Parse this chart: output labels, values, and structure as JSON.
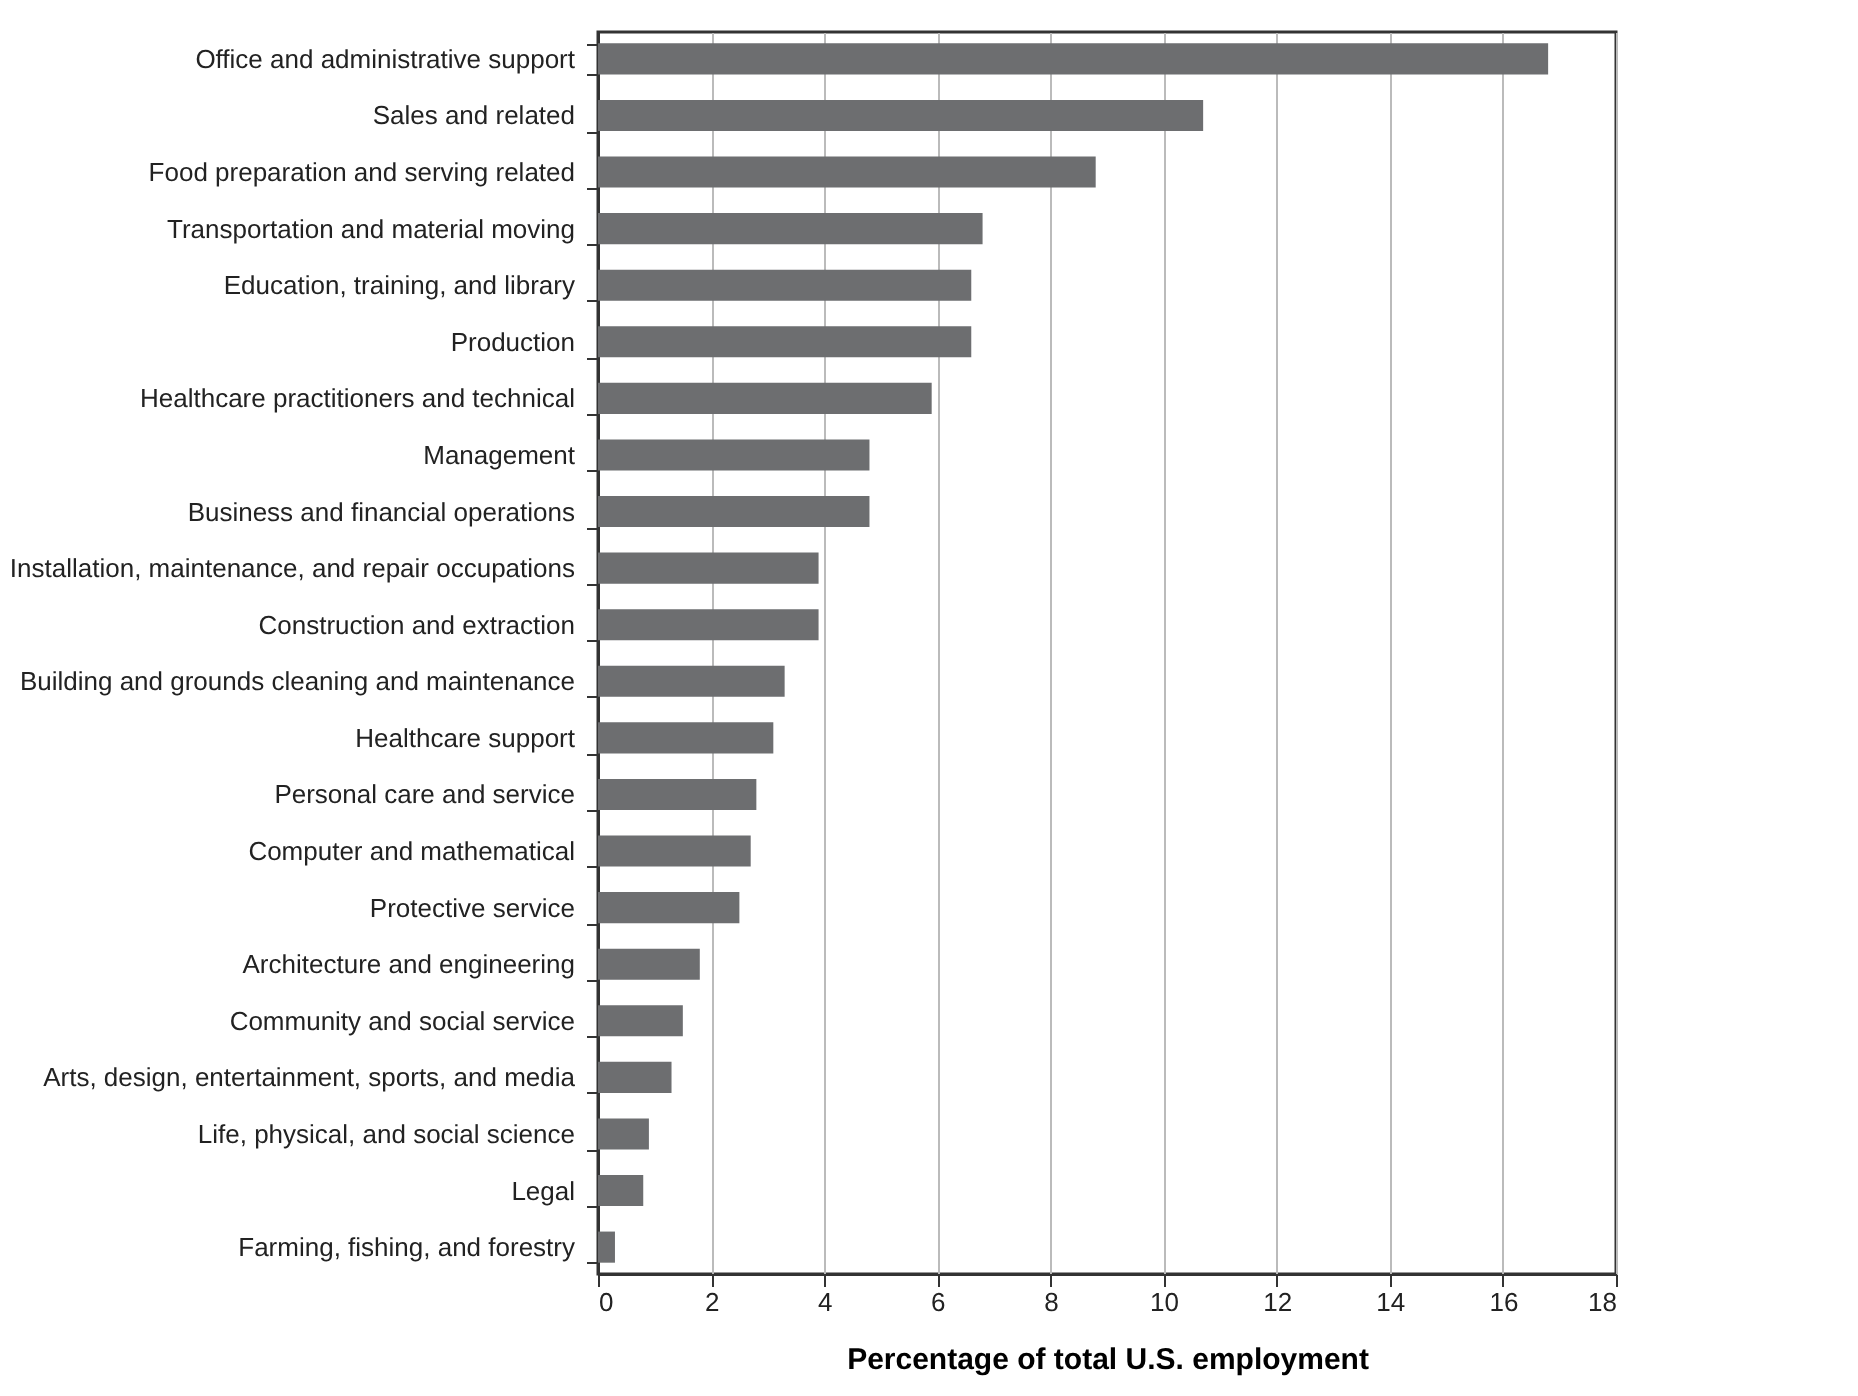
{
  "chart_data": {
    "type": "bar",
    "orientation": "horizontal",
    "xlabel": "Percentage of total U.S. employment",
    "categories": [
      "Office and administrative support",
      "Sales and related",
      "Food preparation and serving related",
      "Transportation and material moving",
      "Education, training, and library",
      "Production",
      "Healthcare practitioners and technical",
      "Management",
      "Business and financial operations",
      "Installation, maintenance, and repair occupations",
      "Construction and extraction",
      "Building and grounds cleaning and maintenance",
      "Healthcare support",
      "Personal care and service",
      "Computer and mathematical",
      "Protective service",
      "Architecture and engineering",
      "Community and social service",
      "Arts, design, entertainment, sports, and media",
      "Life, physical, and social science",
      "Legal",
      "Farming, fishing, and forestry"
    ],
    "values": [
      16.8,
      10.7,
      8.8,
      6.8,
      6.6,
      6.6,
      5.9,
      4.8,
      4.8,
      3.9,
      3.9,
      3.3,
      3.1,
      2.8,
      2.7,
      2.5,
      1.8,
      1.5,
      1.3,
      0.9,
      0.8,
      0.3
    ],
    "color": "#6d6e70",
    "xlim": [
      0,
      18
    ],
    "xticks": [
      0,
      2,
      4,
      6,
      8,
      10,
      12,
      14,
      16,
      18
    ],
    "grid": "x"
  }
}
